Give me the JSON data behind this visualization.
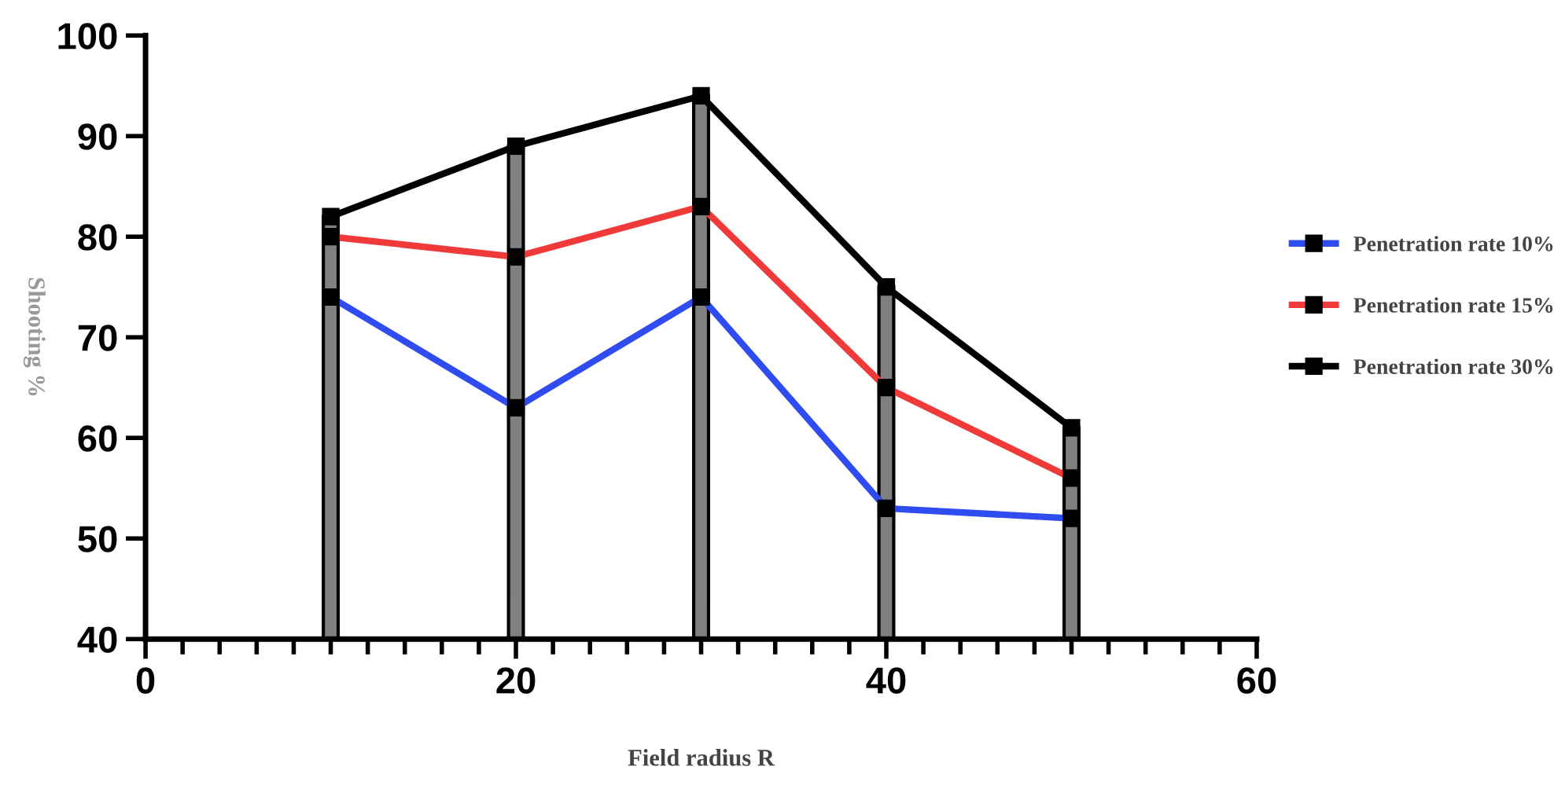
{
  "chart_data": {
    "type": "line",
    "xlabel": "Field radius R",
    "ylabel": "Shooting %",
    "x": [
      10,
      20,
      30,
      40,
      50
    ],
    "series": [
      {
        "type": "bar",
        "color": "#808080",
        "values": [
          82,
          89,
          94,
          75,
          61
        ]
      },
      {
        "name": "Penetration rate 10%",
        "color": "#2f4cf0",
        "values": [
          74,
          63,
          74,
          53,
          52
        ]
      },
      {
        "name": "Penetration rate 15%",
        "color": "#f03a3a",
        "values": [
          80,
          78,
          83,
          65,
          56
        ]
      },
      {
        "name": "Penetration rate 30%",
        "color": "#000000",
        "values": [
          82,
          89,
          94,
          75,
          61
        ]
      }
    ],
    "xlim": [
      0,
      60
    ],
    "xticks": [
      0,
      20,
      40,
      60
    ],
    "ylim": [
      40,
      100
    ],
    "yticks": [
      40,
      50,
      60,
      70,
      80,
      90,
      100
    ],
    "marker": "square",
    "line_style": "solid",
    "grid": false,
    "legend": "right"
  }
}
